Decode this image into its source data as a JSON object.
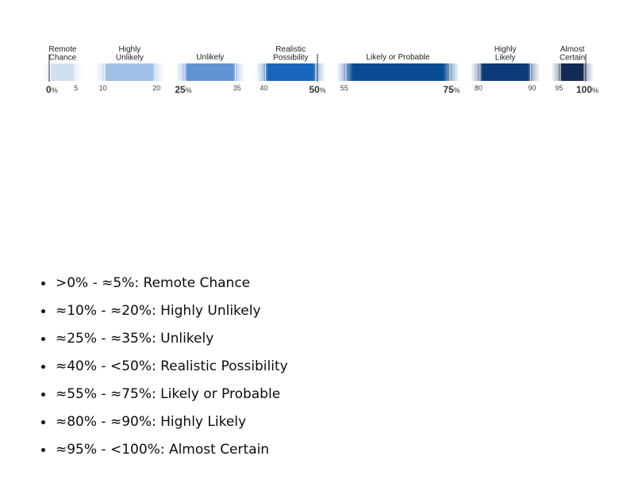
{
  "yardstick": {
    "bands": [
      {
        "label_lines": [
          "Remote",
          "Chance"
        ],
        "from": 0,
        "to": 5,
        "color": "#d0dff2"
      },
      {
        "label_lines": [
          "Highly",
          "Unlikely"
        ],
        "from": 10,
        "to": 20,
        "color": "#9fbfe6"
      },
      {
        "label_lines": [
          "Unlikely"
        ],
        "from": 25,
        "to": 35,
        "color": "#5f93d3"
      },
      {
        "label_lines": [
          "Realistic",
          "Possibility"
        ],
        "from": 40,
        "to": 50,
        "color": "#1766bb"
      },
      {
        "label_lines": [
          "Likely or Probable"
        ],
        "from": 55,
        "to": 75,
        "color": "#0a4b95"
      },
      {
        "label_lines": [
          "Highly",
          "Likely"
        ],
        "from": 80,
        "to": 90,
        "color": "#0d3a78"
      },
      {
        "label_lines": [
          "Almost",
          "Certain"
        ],
        "from": 95,
        "to": 100,
        "color": "#132a55"
      }
    ],
    "ticks": [
      {
        "value": 0,
        "text": "0",
        "suffix": "%",
        "major": true
      },
      {
        "value": 5,
        "text": "5",
        "suffix": "",
        "major": false
      },
      {
        "value": 10,
        "text": "10",
        "suffix": "",
        "major": false
      },
      {
        "value": 20,
        "text": "20",
        "suffix": "",
        "major": false
      },
      {
        "value": 25,
        "text": "25",
        "suffix": "%",
        "major": true
      },
      {
        "value": 35,
        "text": "35",
        "suffix": "",
        "major": false
      },
      {
        "value": 40,
        "text": "40",
        "suffix": "",
        "major": false
      },
      {
        "value": 50,
        "text": "50",
        "suffix": "%",
        "major": true
      },
      {
        "value": 55,
        "text": "55",
        "suffix": "",
        "major": false
      },
      {
        "value": 75,
        "text": "75",
        "suffix": "%",
        "major": true
      },
      {
        "value": 80,
        "text": "80",
        "suffix": "",
        "major": false
      },
      {
        "value": 90,
        "text": "90",
        "suffix": "",
        "major": false
      },
      {
        "value": 95,
        "text": "95",
        "suffix": "",
        "major": false
      },
      {
        "value": 100,
        "text": "100",
        "suffix": "%",
        "major": true
      }
    ]
  },
  "list": [
    ">0% - ≈5%: Remote Chance",
    "≈10% - ≈20%: Highly Unlikely",
    "≈25% - ≈35%: Unlikely",
    "≈40% - <50%: Realistic Possibility",
    "≈55% - ≈75%: Likely or Probable",
    "≈80% - ≈90%: Highly Likely",
    "≈95% - <100%: Almost Certain"
  ]
}
